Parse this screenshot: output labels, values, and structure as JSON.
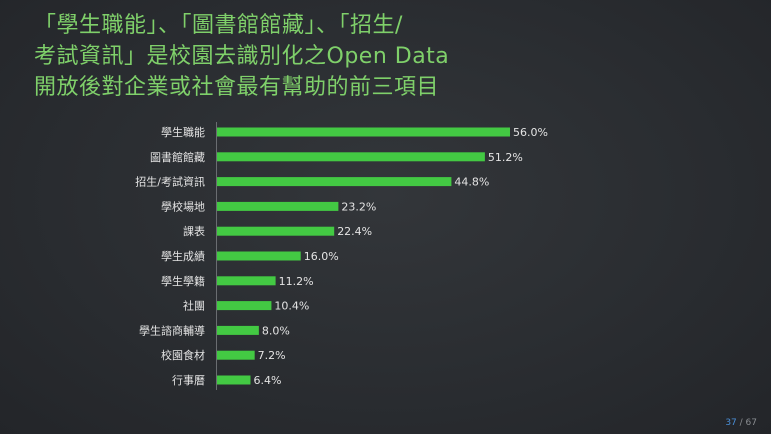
{
  "slide": {
    "title_lines": [
      "「學生職能」、「圖書館館藏」、「招生/",
      "考試資訊」是校園去識別化之Open Data",
      "開放後對企業或社會最有幫助的前三項目"
    ],
    "page_current": "37",
    "page_sep": " / ",
    "page_total": "67"
  },
  "colors": {
    "bar": "#43c943",
    "title": "#7fd06a",
    "text": "#e4e4e4",
    "background": "#2c2f33"
  },
  "chart_data": {
    "type": "bar",
    "orientation": "horizontal",
    "categories": [
      "學生職能",
      "圖書館館藏",
      "招生/考試資訊",
      "學校場地",
      "課表",
      "學生成績",
      "學生學籍",
      "社團",
      "學生諮商輔導",
      "校園食材",
      "行事曆"
    ],
    "values": [
      56.0,
      51.2,
      44.8,
      23.2,
      22.4,
      16.0,
      11.2,
      10.4,
      8.0,
      7.2,
      6.4
    ],
    "value_labels": [
      "56.0%",
      "51.2%",
      "44.8%",
      "23.2%",
      "22.4%",
      "16.0%",
      "11.2%",
      "10.4%",
      "8.0%",
      "7.2%",
      "6.4%"
    ],
    "title": "",
    "xlabel": "",
    "ylabel": "",
    "xlim": [
      0,
      56.0
    ],
    "grid": false,
    "legend": "none"
  }
}
